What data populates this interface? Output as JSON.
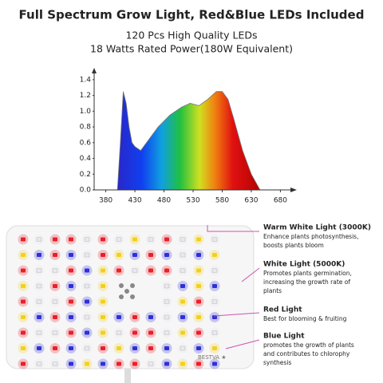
{
  "title": "Full Spectrum Grow Light, Red&Blue LEDs Included",
  "subtitle": [
    "120 Pcs High Quality LEDs",
    "18 Watts Rated Power(180W Equivalent)"
  ],
  "chart_data": {
    "type": "area",
    "x": [
      400,
      405,
      410,
      415,
      420,
      425,
      430,
      440,
      450,
      470,
      490,
      510,
      525,
      540,
      555,
      570,
      580,
      590,
      600,
      615,
      630,
      645
    ],
    "values": [
      0.0,
      0.6,
      1.25,
      1.1,
      0.8,
      0.6,
      0.55,
      0.5,
      0.6,
      0.8,
      0.95,
      1.05,
      1.1,
      1.07,
      1.15,
      1.25,
      1.25,
      1.15,
      0.9,
      0.5,
      0.2,
      0.0
    ],
    "xlim": [
      360,
      700
    ],
    "ylim": [
      0,
      1.5
    ],
    "xticks": [
      380,
      430,
      480,
      530,
      580,
      630,
      680
    ],
    "yticks": [
      {
        "value": 0,
        "label": "0.0"
      },
      0.2,
      0.4,
      0.6,
      0.8,
      {
        "value": 1,
        "label": "1.0"
      },
      1.2,
      1.4
    ]
  },
  "panel": {
    "brand": "BESTVA ★",
    "callouts": [
      {
        "title": "Warm White Light (3000K)",
        "lines": [
          "Enhance plants photosynthesis,",
          "boosts plants bloom"
        ]
      },
      {
        "title": "White Light (5000K)",
        "lines": [
          "Promotes plants germination,",
          "increasing the growth rate of",
          "plants"
        ]
      },
      {
        "title": "Red Light",
        "lines": [
          "Best for blooming & fruiting"
        ]
      },
      {
        "title": "Blue Light",
        "lines": [
          "promotes the growth of plants",
          "and contributes to chlorophy",
          "synthesis"
        ]
      }
    ]
  }
}
